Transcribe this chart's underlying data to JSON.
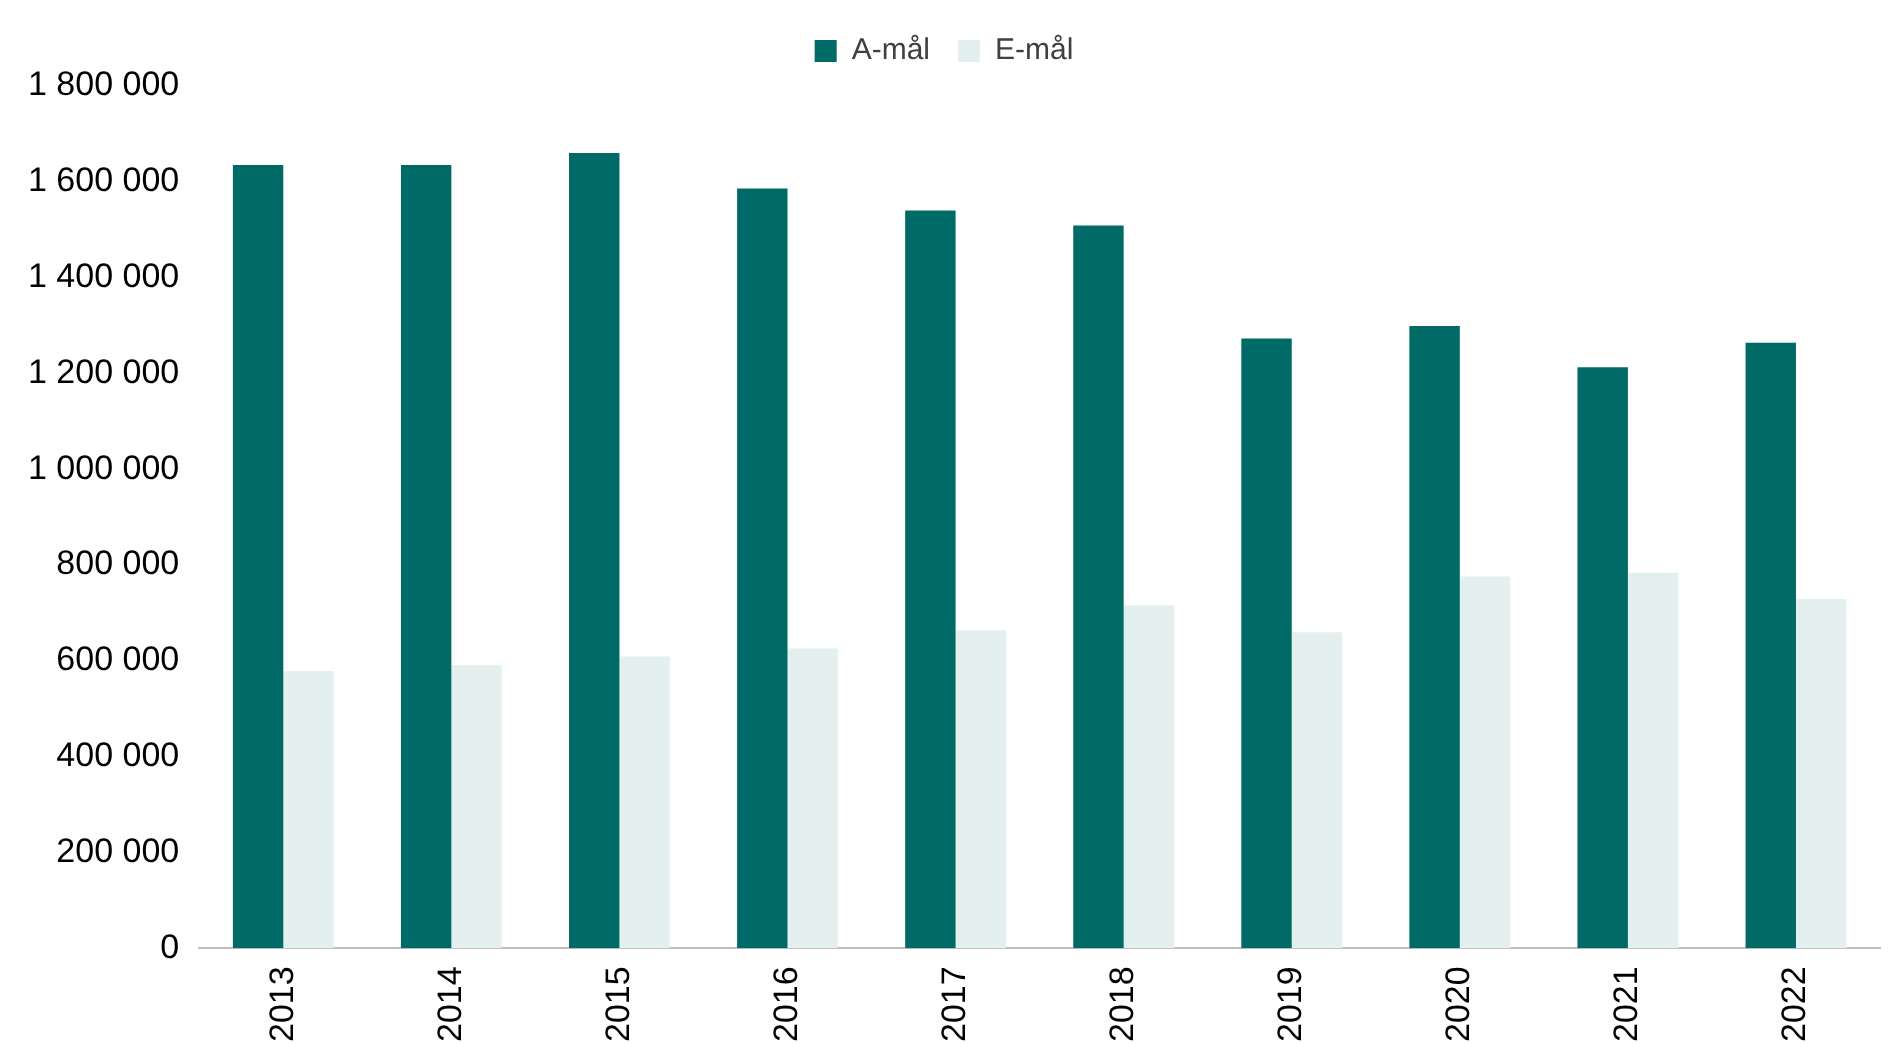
{
  "chart_data": {
    "type": "bar",
    "categories": [
      "2013",
      "2014",
      "2015",
      "2016",
      "2017",
      "2018",
      "2019",
      "2020",
      "2021",
      "2022"
    ],
    "series": [
      {
        "name": "A-mål",
        "color": "#006a66",
        "values": [
          1635000,
          1635000,
          1660000,
          1586000,
          1540000,
          1509000,
          1273000,
          1299000,
          1213000,
          1264000
        ]
      },
      {
        "name": "E-mål",
        "color": "#e4f0ef",
        "values": [
          579000,
          591000,
          609000,
          626000,
          664000,
          716000,
          660000,
          776000,
          784000,
          729000
        ]
      }
    ],
    "ylim": [
      0,
      1800000
    ],
    "yticks": [
      0,
      {
        "value": 200000,
        "label": "200 000"
      },
      {
        "value": 400000,
        "label": "400 000"
      },
      {
        "value": 600000,
        "label": "600 000"
      },
      {
        "value": 800000,
        "label": "800 000"
      },
      {
        "value": 1000000,
        "label": "1 000 000"
      },
      {
        "value": 1200000,
        "label": "1 200 000"
      },
      {
        "value": 1400000,
        "label": "1 400 000"
      },
      {
        "value": 1600000,
        "label": "1 600 000"
      },
      {
        "value": 1800000,
        "label": "1 800 000"
      }
    ],
    "grid": false,
    "legend": "top"
  }
}
